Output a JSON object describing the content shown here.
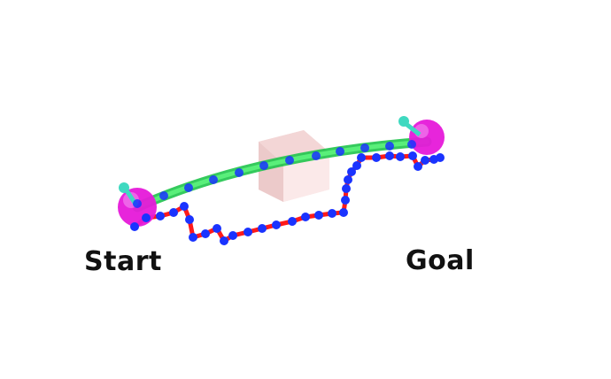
{
  "labels": {
    "start": "Start",
    "goal": "Goal"
  },
  "colors": {
    "background": "#ffffff",
    "endpoint": "#e619d9",
    "arrow": "#3fd9c0",
    "planned_path": "#33dd55",
    "rough_path": "#ff1a1a",
    "waypoint": "#1a33ff",
    "obstacle": "#f6dede",
    "text": "#111111"
  },
  "icons": {
    "start_marker": "sphere-icon",
    "goal_marker": "sphere-icon",
    "orientation_arrow": "arrow-icon",
    "obstacle": "cube-icon"
  }
}
